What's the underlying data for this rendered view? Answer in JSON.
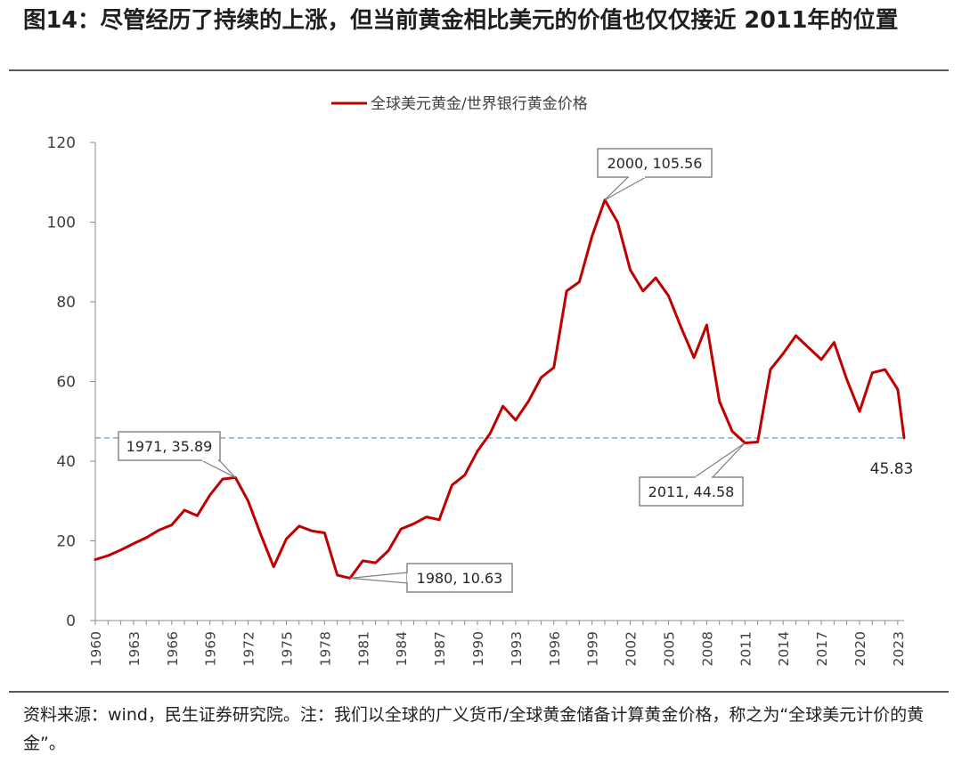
{
  "figure": {
    "title": "图14：尽管经历了持续的上涨，但当前黄金相比美元的价值也仅仅接近 2011年的位置",
    "source_note": "资料来源：wind，民生证券研究院。注：我们以全球的广义货币/全球黄金储备计算黄金价格，称之为“全球美元计价的黄金”。"
  },
  "chart_data": {
    "type": "line",
    "title": "",
    "xlabel": "",
    "ylabel": "",
    "ylim": [
      0,
      120
    ],
    "yticks": [
      0,
      20,
      40,
      60,
      80,
      100,
      120
    ],
    "xlim": [
      1960,
      2023.5
    ],
    "xticks": [
      1960,
      1963,
      1966,
      1969,
      1972,
      1975,
      1978,
      1981,
      1984,
      1987,
      1990,
      1993,
      1996,
      1999,
      2002,
      2005,
      2008,
      2011,
      2014,
      2017,
      2020,
      2023
    ],
    "grid": false,
    "legend": {
      "position": "top-center",
      "entries": [
        "全球美元黄金/世界银行黄金价格"
      ]
    },
    "series": [
      {
        "name": "全球美元黄金/世界银行黄金价格",
        "color": "#c00000",
        "x": [
          1960,
          1961,
          1962,
          1963,
          1964,
          1965,
          1966,
          1967,
          1968,
          1969,
          1970,
          1971,
          1972,
          1973,
          1974,
          1975,
          1976,
          1977,
          1978,
          1979,
          1980,
          1981,
          1982,
          1983,
          1984,
          1985,
          1986,
          1987,
          1988,
          1989,
          1990,
          1991,
          1992,
          1993,
          1994,
          1995,
          1996,
          1997,
          1998,
          1999,
          2000,
          2001,
          2002,
          2003,
          2004,
          2005,
          2006,
          2007,
          2008,
          2009,
          2010,
          2011,
          2012,
          2013,
          2014,
          2015,
          2016,
          2017,
          2018,
          2019,
          2020,
          2021,
          2022,
          2023,
          2023.5
        ],
        "values": [
          15.3,
          16.3,
          17.7,
          19.3,
          20.8,
          22.7,
          24.0,
          27.7,
          26.3,
          31.5,
          35.5,
          35.89,
          30.0,
          21.5,
          13.5,
          20.5,
          23.7,
          22.5,
          22.0,
          11.4,
          10.63,
          15.0,
          14.5,
          17.5,
          23.0,
          24.3,
          26.0,
          25.3,
          34.0,
          36.5,
          42.5,
          47.0,
          53.8,
          50.3,
          55.0,
          61.0,
          63.5,
          82.7,
          85.0,
          96.5,
          105.56,
          100.0,
          88.0,
          82.7,
          86.0,
          81.5,
          73.5,
          66.0,
          74.2,
          55.0,
          47.5,
          44.58,
          44.8,
          63.0,
          67.0,
          71.5,
          68.5,
          65.5,
          69.8,
          60.5,
          52.5,
          62.2,
          63.0,
          58.0,
          45.83
        ]
      }
    ],
    "reference_line": {
      "y": 45.83,
      "style": "dashed",
      "color": "#5b9bd5"
    },
    "annotations": [
      {
        "label": "1971, 35.89",
        "x": 1971,
        "y": 35.89
      },
      {
        "label": "1980, 10.63",
        "x": 1980,
        "y": 10.63
      },
      {
        "label": "2000, 105.56",
        "x": 2000,
        "y": 105.56
      },
      {
        "label": "2011, 44.58",
        "x": 2011,
        "y": 44.58
      }
    ],
    "end_label": "45.83"
  }
}
